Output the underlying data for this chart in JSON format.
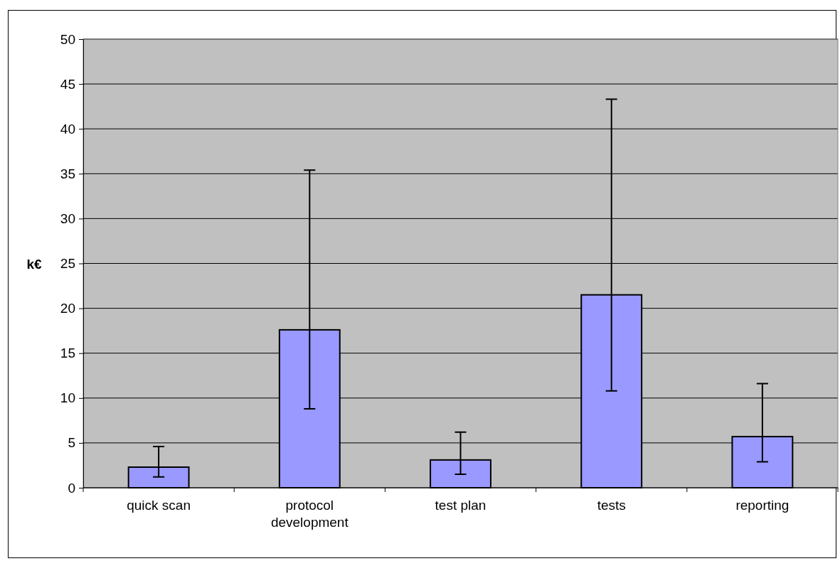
{
  "chart_data": {
    "type": "bar",
    "ylabel": "k€",
    "categories": [
      "quick scan",
      "protocol development",
      "test plan",
      "tests",
      "reporting"
    ],
    "values": [
      2.3,
      17.6,
      3.1,
      21.5,
      5.7
    ],
    "errors": [
      [
        1.2,
        4.6
      ],
      [
        8.8,
        35.4
      ],
      [
        1.5,
        6.2
      ],
      [
        10.8,
        43.3
      ],
      [
        2.9,
        11.6
      ]
    ],
    "color": "#9999ff",
    "ylim": [
      0,
      50
    ],
    "yticks": [
      0,
      5,
      10,
      15,
      20,
      25,
      30,
      35,
      40,
      45,
      50
    ],
    "grid": "y"
  }
}
